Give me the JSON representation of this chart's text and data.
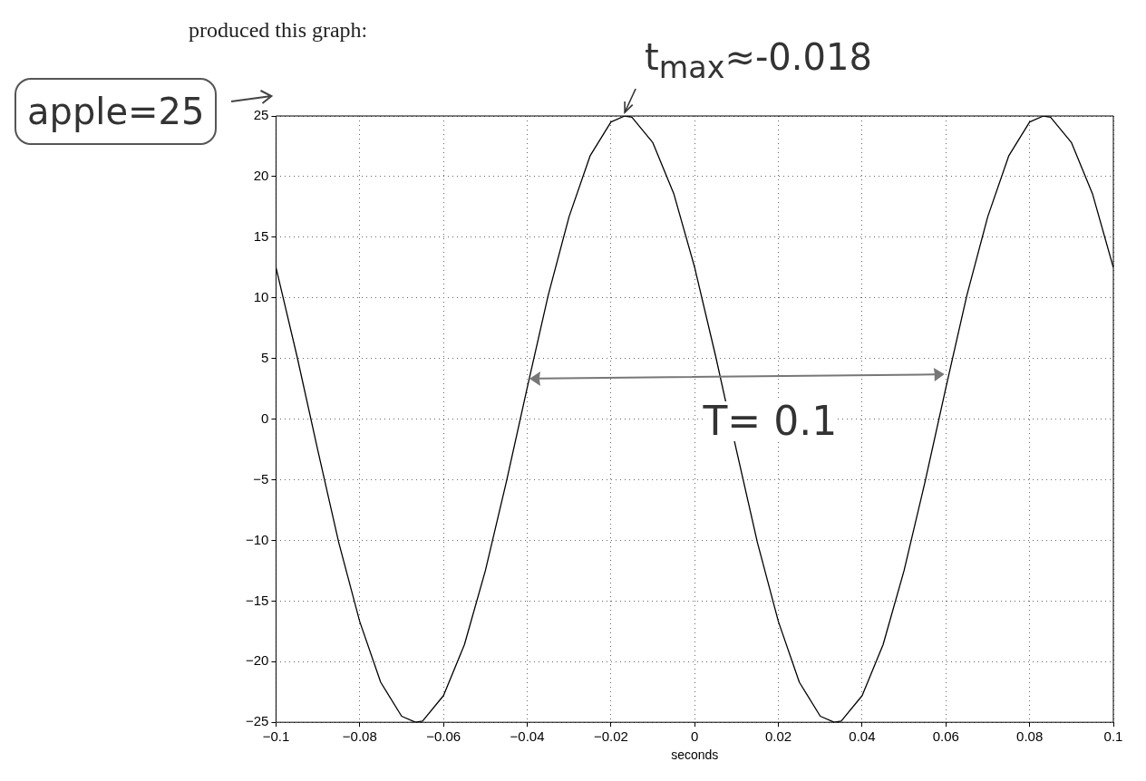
{
  "chart_data": {
    "type": "line",
    "xlabel": "seconds",
    "x": [
      -0.1,
      -0.095,
      -0.09,
      -0.085,
      -0.08,
      -0.075,
      -0.07,
      -0.0667,
      -0.065,
      -0.06,
      -0.055,
      -0.05,
      -0.045,
      -0.04,
      -0.035,
      -0.03,
      -0.025,
      -0.02,
      -0.0167,
      -0.015,
      -0.01,
      -0.005,
      0,
      0.005,
      0.01,
      0.015,
      0.02,
      0.025,
      0.03,
      0.0333,
      0.035,
      0.04,
      0.045,
      0.05,
      0.055,
      0.06,
      0.065,
      0.07,
      0.075,
      0.08,
      0.0833,
      0.085,
      0.09,
      0.095,
      0.1
    ],
    "series": [
      {
        "color": "#000000",
        "values": [
          12.5,
          5.2,
          -2.6,
          -10.2,
          -16.7,
          -21.7,
          -24.5,
          -25,
          -24.9,
          -22.8,
          -18.6,
          -12.5,
          -5.2,
          2.6,
          10.2,
          16.7,
          21.7,
          24.5,
          25,
          24.9,
          22.8,
          18.6,
          12.5,
          5.2,
          -2.6,
          -10.2,
          -16.7,
          -21.7,
          -24.5,
          -25,
          -24.9,
          -22.8,
          -18.6,
          -12.5,
          -5.2,
          2.6,
          10.2,
          16.7,
          21.7,
          24.5,
          25,
          24.9,
          22.8,
          18.6,
          12.5
        ]
      }
    ],
    "xlim": [
      -0.1,
      0.1
    ],
    "xticks": [
      -0.1,
      -0.08,
      -0.06,
      -0.04,
      -0.02,
      0,
      0.02,
      0.04,
      0.06,
      0.08,
      0.1
    ],
    "ylim": [
      -25,
      25
    ],
    "yticks": [
      -25,
      -20,
      -15,
      -10,
      -5,
      0,
      5,
      10,
      15,
      20,
      25
    ],
    "grid": true,
    "marker": "none",
    "line_style": "solid",
    "annotations": [
      "produced this graph:",
      "apple=25",
      {
        "text": "t$_{max}$≈-0.018",
        "x": -0.0167,
        "y": 25
      },
      "T= 0.1"
    ]
  }
}
